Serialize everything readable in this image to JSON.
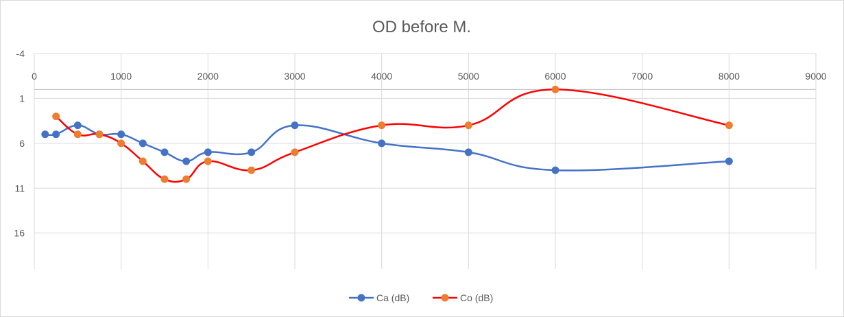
{
  "chart_data": {
    "type": "line",
    "title": "OD before M.",
    "x_axis": {
      "min": 0,
      "max": 9000,
      "ticks": [
        "0",
        "1000",
        "2000",
        "3000",
        "4000",
        "5000",
        "6000",
        "7000",
        "8000",
        "9000"
      ]
    },
    "y_axis": {
      "min": -4,
      "max": 20,
      "reversed": true,
      "ticks": [
        "-4",
        "1",
        "6",
        "11",
        "16"
      ]
    },
    "grid": true,
    "legend_position": "bottom",
    "series": [
      {
        "name": "Ca (dB)",
        "color": "#4472c4",
        "points": [
          [
            125,
            5
          ],
          [
            250,
            5
          ],
          [
            500,
            4
          ],
          [
            750,
            5
          ],
          [
            1000,
            5
          ],
          [
            1250,
            6
          ],
          [
            1500,
            7
          ],
          [
            1750,
            8
          ],
          [
            2000,
            7
          ],
          [
            2500,
            7
          ],
          [
            3000,
            4
          ],
          [
            4000,
            6
          ],
          [
            5000,
            7
          ],
          [
            6000,
            9
          ],
          [
            8000,
            8
          ]
        ]
      },
      {
        "name": "Co (dB)",
        "color": "#ed7d31",
        "line_color": "#ff0000",
        "points": [
          [
            250,
            3
          ],
          [
            500,
            5
          ],
          [
            750,
            5
          ],
          [
            1000,
            6
          ],
          [
            1250,
            8
          ],
          [
            1500,
            10
          ],
          [
            1750,
            10
          ],
          [
            2000,
            8
          ],
          [
            2500,
            9
          ],
          [
            3000,
            7
          ],
          [
            4000,
            4
          ],
          [
            5000,
            4
          ],
          [
            6000,
            0
          ],
          [
            8000,
            4
          ]
        ]
      }
    ]
  }
}
